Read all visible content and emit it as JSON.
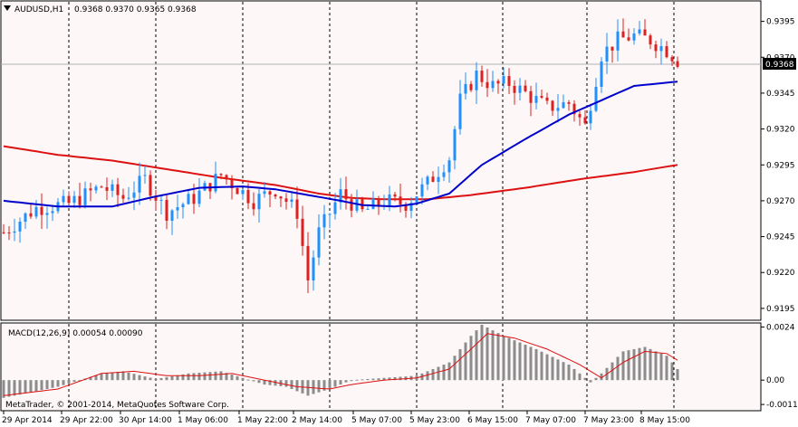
{
  "window": {
    "symbol_timeframe": "AUDUSD,H1",
    "ohlc": "0.9368 0.9370 0.9365 0.9368",
    "copyright": "MetaTrader, © 2001-2014, MetaQuotes Software Corp.",
    "current_price_label": "0.9368"
  },
  "macd": {
    "label": "MACD(12,26,9) 0.00054 0.00090",
    "ticks": [
      "0.0024",
      "0.00",
      "-0.0011"
    ]
  },
  "colors": {
    "background": "#fdf7f7",
    "bull_candle": "#1e90ff",
    "bear_candle": "#e02020",
    "ma_fast": "#0000cc",
    "ma_slow": "#dd1111",
    "macd_hist": "#8c8c8c",
    "macd_signal": "#dd1111"
  },
  "chart_data": {
    "type": "candlestick",
    "y_ticks": [
      "0.9395",
      "0.9370",
      "0.9345",
      "0.9320",
      "0.9295",
      "0.9270",
      "0.9245",
      "0.9220",
      "0.9195"
    ],
    "ylim": [
      0.9188,
      0.9408
    ],
    "x_labels": [
      "29 Apr 2014",
      "29 Apr 22:00",
      "30 Apr 14:00",
      "1 May 06:00",
      "1 May 22:00",
      "2 May 14:00",
      "5 May 07:00",
      "5 May 23:00",
      "6 May 15:00",
      "7 May 07:00",
      "7 May 23:00",
      "8 May 15:00"
    ],
    "current_price": 0.9368,
    "candle_count": 125,
    "close_keypoints": [
      [
        0,
        0.9248
      ],
      [
        6,
        0.9265
      ],
      [
        12,
        0.9268
      ],
      [
        18,
        0.928
      ],
      [
        22,
        0.9272
      ],
      [
        26,
        0.9285
      ],
      [
        30,
        0.9262
      ],
      [
        35,
        0.9272
      ],
      [
        40,
        0.9288
      ],
      [
        46,
        0.927
      ],
      [
        50,
        0.9278
      ],
      [
        54,
        0.9262
      ],
      [
        56,
        0.9215
      ],
      [
        58,
        0.9248
      ],
      [
        62,
        0.9275
      ],
      [
        66,
        0.9262
      ],
      [
        70,
        0.927
      ],
      [
        74,
        0.9268
      ],
      [
        78,
        0.9282
      ],
      [
        82,
        0.93
      ],
      [
        84,
        0.934
      ],
      [
        87,
        0.9358
      ],
      [
        90,
        0.935
      ],
      [
        93,
        0.9352
      ],
      [
        96,
        0.9345
      ],
      [
        100,
        0.9335
      ],
      [
        104,
        0.9338
      ],
      [
        107,
        0.9322
      ],
      [
        110,
        0.9372
      ],
      [
        113,
        0.9382
      ],
      [
        116,
        0.9385
      ],
      [
        119,
        0.9382
      ],
      [
        122,
        0.9375
      ],
      [
        124,
        0.9368
      ]
    ],
    "ma_fast_keypoints": [
      [
        0,
        0.927
      ],
      [
        10,
        0.9266
      ],
      [
        20,
        0.9266
      ],
      [
        28,
        0.9273
      ],
      [
        36,
        0.9279
      ],
      [
        44,
        0.928
      ],
      [
        50,
        0.9278
      ],
      [
        56,
        0.9274
      ],
      [
        62,
        0.927
      ],
      [
        66,
        0.9267
      ],
      [
        72,
        0.9266
      ],
      [
        76,
        0.9268
      ],
      [
        82,
        0.9275
      ],
      [
        88,
        0.9295
      ],
      [
        96,
        0.9313
      ],
      [
        104,
        0.933
      ],
      [
        110,
        0.934
      ],
      [
        116,
        0.935
      ],
      [
        124,
        0.9353
      ]
    ],
    "ma_slow_keypoints": [
      [
        0,
        0.9308
      ],
      [
        10,
        0.9302
      ],
      [
        20,
        0.9298
      ],
      [
        30,
        0.9292
      ],
      [
        40,
        0.9286
      ],
      [
        50,
        0.9281
      ],
      [
        58,
        0.9275
      ],
      [
        64,
        0.9272
      ],
      [
        70,
        0.9271
      ],
      [
        78,
        0.9271
      ],
      [
        86,
        0.9274
      ],
      [
        96,
        0.9279
      ],
      [
        106,
        0.9285
      ],
      [
        116,
        0.929
      ],
      [
        124,
        0.9295
      ]
    ],
    "macd_ylim": [
      -0.0013,
      0.0025
    ],
    "macd_hist_keypoints": [
      [
        0,
        -0.0008
      ],
      [
        10,
        -0.0003
      ],
      [
        18,
        0.0003
      ],
      [
        22,
        0.0004
      ],
      [
        28,
        5e-05
      ],
      [
        34,
        0.0003
      ],
      [
        40,
        0.0004
      ],
      [
        44,
        0.0001
      ],
      [
        48,
        -0.0002
      ],
      [
        52,
        -0.0003
      ],
      [
        56,
        -0.0007
      ],
      [
        60,
        -0.0004
      ],
      [
        64,
        0.0
      ],
      [
        70,
        0.0001
      ],
      [
        76,
        0.0002
      ],
      [
        82,
        0.0008
      ],
      [
        86,
        0.002
      ],
      [
        88,
        0.0025
      ],
      [
        92,
        0.002
      ],
      [
        98,
        0.0014
      ],
      [
        104,
        0.0007
      ],
      [
        108,
        -0.0001
      ],
      [
        110,
        0.0003
      ],
      [
        114,
        0.0013
      ],
      [
        118,
        0.0015
      ],
      [
        122,
        0.0011
      ],
      [
        124,
        0.0005
      ]
    ],
    "macd_signal_keypoints": [
      [
        0,
        -0.0007
      ],
      [
        10,
        -0.0004
      ],
      [
        18,
        0.0003
      ],
      [
        24,
        0.0004
      ],
      [
        30,
        0.0002
      ],
      [
        36,
        0.0002
      ],
      [
        42,
        0.0003
      ],
      [
        48,
        0.0
      ],
      [
        54,
        -0.0003
      ],
      [
        60,
        -0.0004
      ],
      [
        64,
        -0.0002
      ],
      [
        70,
        0.0
      ],
      [
        76,
        0.0001
      ],
      [
        82,
        0.0005
      ],
      [
        86,
        0.0014
      ],
      [
        89,
        0.0021
      ],
      [
        94,
        0.0019
      ],
      [
        100,
        0.0014
      ],
      [
        106,
        0.0007
      ],
      [
        110,
        0.0001
      ],
      [
        114,
        0.0008
      ],
      [
        118,
        0.0013
      ],
      [
        122,
        0.0012
      ],
      [
        124,
        0.0009
      ]
    ]
  }
}
